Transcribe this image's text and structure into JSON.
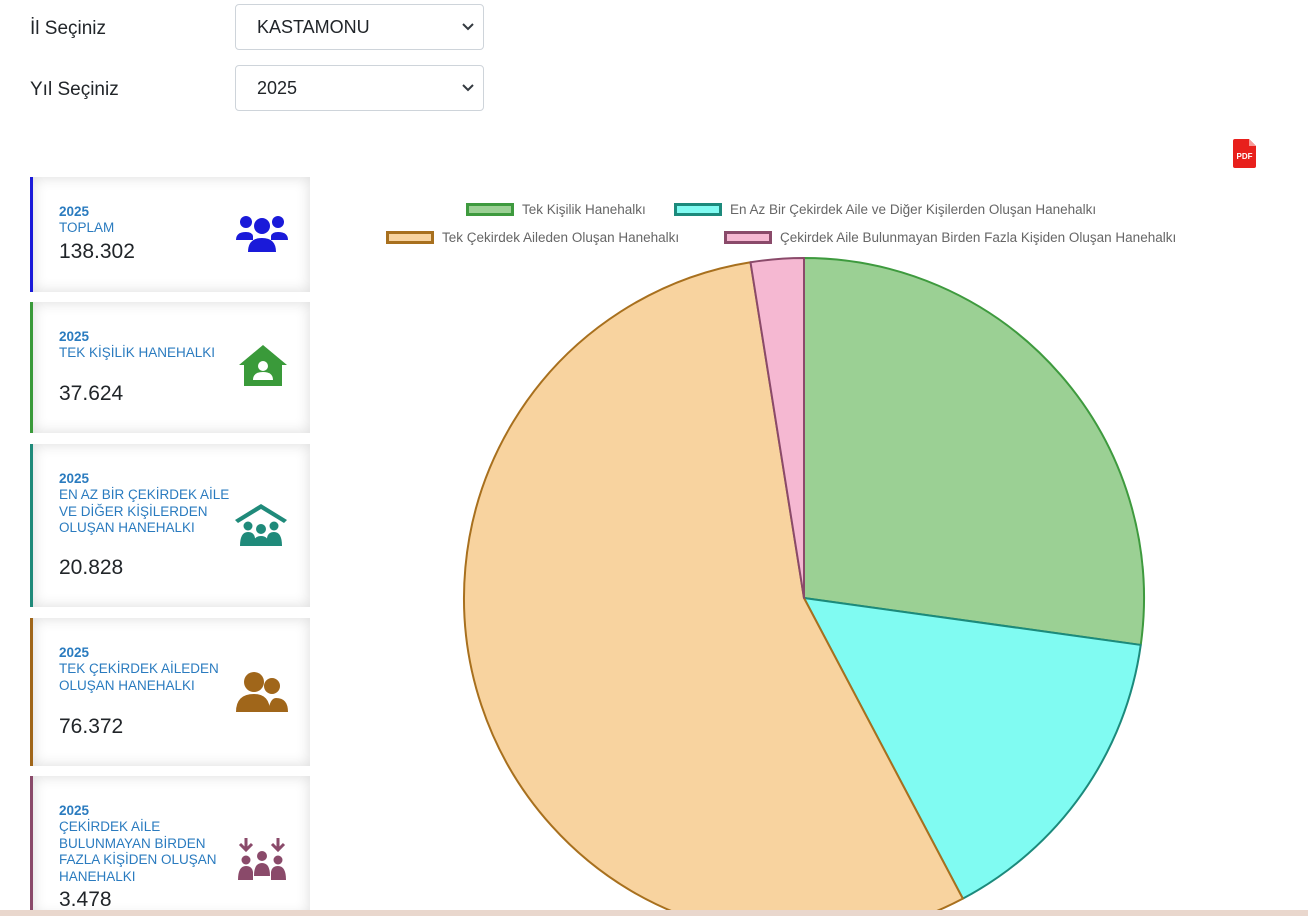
{
  "filters": {
    "province_label": "İl Seçiniz",
    "province_value": "KASTAMONU",
    "year_label": "Yıl Seçiniz",
    "year_value": "2025"
  },
  "export": {
    "pdf_icon": "pdf-file-icon",
    "pdf_text": "PDF"
  },
  "cards": [
    {
      "year": "2025",
      "title": "TOPLAM",
      "value": "138.302",
      "icon": "users-group-icon",
      "color": "#1a1ad9"
    },
    {
      "year": "2025",
      "title": "TEK KİŞİLİK HANEHALKI",
      "value": "37.624",
      "icon": "house-user-icon",
      "color": "#3a9a3a"
    },
    {
      "year": "2025",
      "title": "EN AZ BİR ÇEKİRDEK AİLE VE DİĞER KİŞİLERDEN OLUŞAN HANEHALKI",
      "value": "20.828",
      "icon": "people-roof-icon",
      "color": "#1f8a7a"
    },
    {
      "year": "2025",
      "title": "TEK ÇEKİRDEK AİLEDEN OLUŞAN HANEHALKI",
      "value": "76.372",
      "icon": "user-group-icon",
      "color": "#a0661a"
    },
    {
      "year": "2025",
      "title": "ÇEKİRDEK AİLE BULUNMAYAN BİRDEN FAZLA KİŞİDEN OLUŞAN HANEHALKI",
      "value": "3.478",
      "icon": "people-arrows-down-icon",
      "color": "#8a4a6a"
    }
  ],
  "chart_data": {
    "type": "pie",
    "title": "",
    "legend_position": "top",
    "labels": [
      "Tek Kişilik Hanehalkı",
      "En Az Bir Çekirdek Aile ve Diğer Kişilerden Oluşan Hanehalkı",
      "Tek Çekirdek Aileden Oluşan Hanehalkı",
      "Çekirdek Aile Bulunmayan Birden Fazla Kişiden Oluşan Hanehalkı"
    ],
    "values": [
      37624,
      20828,
      76372,
      3478
    ],
    "fill_colors": [
      "#9bd094",
      "#80fbf2",
      "#f8d39f",
      "#f5b8d2"
    ],
    "border_colors": [
      "#3e9a3e",
      "#1c8a7c",
      "#a8701e",
      "#8a4a6a"
    ]
  }
}
